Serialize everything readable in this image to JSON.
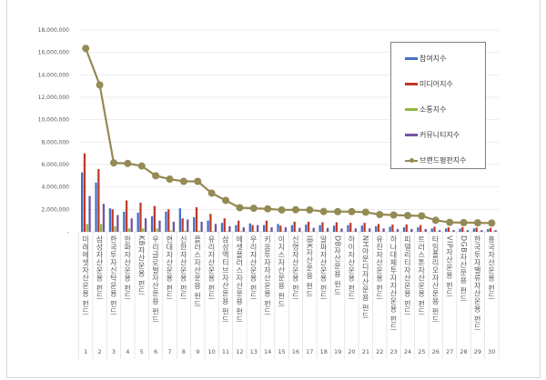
{
  "chart_data": {
    "type": "bar+line",
    "categories": [
      "1",
      "2",
      "3",
      "4",
      "5",
      "6",
      "7",
      "8",
      "9",
      "10",
      "11",
      "12",
      "13",
      "14",
      "15",
      "16",
      "17",
      "18",
      "19",
      "20",
      "21",
      "22",
      "23",
      "24",
      "25",
      "26",
      "27",
      "28",
      "29",
      "30"
    ],
    "category_labels": [
      "미래에셋자산운용 펀드",
      "삼성자산운용 펀드",
      "한국투자신탁운용 펀드",
      "한화자산운용 펀드",
      "KB자산운용 펀드",
      "우리글로벌자산운용 펀드",
      "현대자산운용 펀드",
      "신한자산운용 펀드",
      "플러스자산운용 펀드",
      "유리자산운용 펀드",
      "삼성액티브자산운용 펀드",
      "에셋플러스자산운용 펀드",
      "우리자산운용 펀드",
      "키움투자자산운용 펀드",
      "이지스자산운용 펀드",
      "신영자산운용 펀드",
      "IBK자산운용 펀드",
      "알파자산운용 펀드",
      "DB자산운용 펀드",
      "하이자산운용 펀드",
      "NH아문디자산운용 펀드",
      "유진자산운용 펀드",
      "하나대체투자자산운용 펀드",
      "피델리티자산운용 펀드",
      "트러스톤자산운용 펀드",
      "타임폴리오자산운용 펀드",
      "VIP자산운용 펀드",
      "DGB자산운용 펀드",
      "한국투자밸류자산운용 펀드",
      "흥국자산운용 펀드"
    ],
    "ylim": [
      0,
      18000000
    ],
    "yticks": [
      0,
      2000000,
      4000000,
      6000000,
      8000000,
      10000000,
      12000000,
      14000000,
      16000000,
      18000000
    ],
    "ytick_labels": [
      "-",
      "2,000,000",
      "4,000,000",
      "6,000,000",
      "8,000,000",
      "10,000,000",
      "12,000,000",
      "14,000,000",
      "16,000,000",
      "18,000,000"
    ],
    "grid": true,
    "legend_placement": "top-right",
    "series": [
      {
        "name": "참여지수",
        "type": "bar",
        "color": "#4472c4",
        "values": [
          5300000,
          4400000,
          2100000,
          1800000,
          1700000,
          1400000,
          1800000,
          2100000,
          1300000,
          1000000,
          800000,
          600000,
          750000,
          600000,
          700000,
          600000,
          650000,
          600000,
          550000,
          600000,
          550000,
          500000,
          450000,
          400000,
          400000,
          300000,
          300000,
          280000,
          300000,
          250000
        ]
      },
      {
        "name": "미디어지수",
        "type": "bar",
        "color": "#c0392b",
        "values": [
          7000000,
          5600000,
          2000000,
          2800000,
          2600000,
          2300000,
          2000000,
          1200000,
          2200000,
          1600000,
          1200000,
          1000000,
          600000,
          1000000,
          550000,
          900000,
          900000,
          850000,
          850000,
          800000,
          800000,
          700000,
          650000,
          650000,
          600000,
          450000,
          400000,
          420000,
          380000,
          350000
        ]
      },
      {
        "name": "소통지수",
        "type": "bar",
        "color": "#8db93f",
        "values": [
          700000,
          700000,
          500000,
          300000,
          300000,
          300000,
          100000,
          100000,
          100000,
          50000,
          50000,
          50000,
          50000,
          50000,
          50000,
          30000,
          30000,
          30000,
          30000,
          30000,
          30000,
          30000,
          30000,
          30000,
          30000,
          20000,
          20000,
          20000,
          20000,
          20000
        ]
      },
      {
        "name": "커뮤니티지수",
        "type": "bar",
        "color": "#7454a4",
        "values": [
          3200000,
          2500000,
          1500000,
          1200000,
          1200000,
          1000000,
          900000,
          1100000,
          900000,
          700000,
          500000,
          400000,
          600000,
          400000,
          400000,
          350000,
          350000,
          350000,
          300000,
          300000,
          300000,
          300000,
          250000,
          250000,
          250000,
          150000,
          150000,
          150000,
          150000,
          150000
        ]
      },
      {
        "name": "브랜드평판지수",
        "type": "line",
        "color": "#948a54",
        "values": [
          16360000,
          13100000,
          6150000,
          6100000,
          5870000,
          5000000,
          4700000,
          4500000,
          4500000,
          3450000,
          2800000,
          2150000,
          2100000,
          2050000,
          1950000,
          1970000,
          1950000,
          1810000,
          1800000,
          1800000,
          1750000,
          1540000,
          1500000,
          1450000,
          1420000,
          1030000,
          840000,
          820000,
          800000,
          780000
        ]
      }
    ]
  }
}
